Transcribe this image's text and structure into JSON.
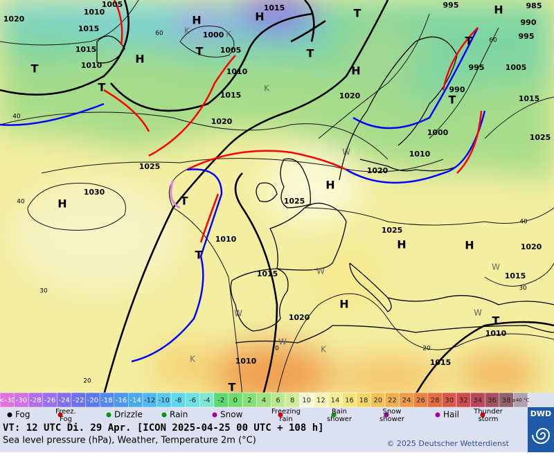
{
  "map": {
    "pressure_labels": [
      "1005",
      "1010",
      "1020",
      "1015",
      "1015",
      "1010",
      "1015",
      "1000",
      "1005",
      "1010",
      "1015",
      "1020",
      "1025",
      "1030",
      "1025",
      "1010",
      "1015",
      "1020",
      "1010",
      "1010",
      "1015",
      "1015",
      "1020",
      "1025",
      "1020",
      "1010",
      "1000",
      "1020",
      "990",
      "995",
      "1005",
      "1015",
      "1025",
      "995",
      "990",
      "995",
      "985"
    ],
    "centers": [
      "H",
      "H",
      "H",
      "T",
      "T",
      "T",
      "T",
      "T",
      "H",
      "H",
      "T",
      "T",
      "H",
      "H",
      "T",
      "T",
      "H",
      "H",
      "H",
      "T",
      "T"
    ],
    "latitude_labels": [
      "60",
      "60",
      "40",
      "40",
      "30",
      "20",
      "40",
      "30",
      "20",
      "0"
    ],
    "weather_letters": [
      "K",
      "K",
      "K",
      "W",
      "W",
      "W",
      "W",
      "K",
      "W",
      "K",
      "W"
    ]
  },
  "temperature_scale": {
    "labels": [
      "<-30",
      "-30",
      "-28",
      "-26",
      "-24",
      "-22",
      "-20",
      "-18",
      "-16",
      "-14",
      "-12",
      "-10",
      "-8",
      "-6",
      "-4",
      "-2",
      "0",
      "2",
      "4",
      "6",
      "8",
      "10",
      "12",
      "14",
      "16",
      "18",
      "20",
      "22",
      "24",
      "26",
      "28",
      "30",
      "32",
      "34",
      "36",
      "38",
      "≥40 °C"
    ]
  },
  "legend": [
    [
      "Fog"
    ],
    [
      "Freez.",
      "Fog"
    ],
    [
      "Drizzle"
    ],
    [
      "Rain"
    ],
    [
      "Snow"
    ],
    [
      "Freezing",
      "rain"
    ],
    [
      "Rain",
      "shower"
    ],
    [
      "Snow",
      "shower"
    ],
    [
      "Hail"
    ],
    [
      "Thunder",
      "storm"
    ]
  ],
  "footer": {
    "valid": "VT: 12 UTC Di.  29 Apr. [ICON 2025-04-25  00 UTC + 108 h]",
    "subtitle": "Sea level pressure (hPa), Weather, Temperature 2m (°C)",
    "copyright": "© 2025 Deutscher Wetterdienst",
    "logo": "DWD"
  }
}
